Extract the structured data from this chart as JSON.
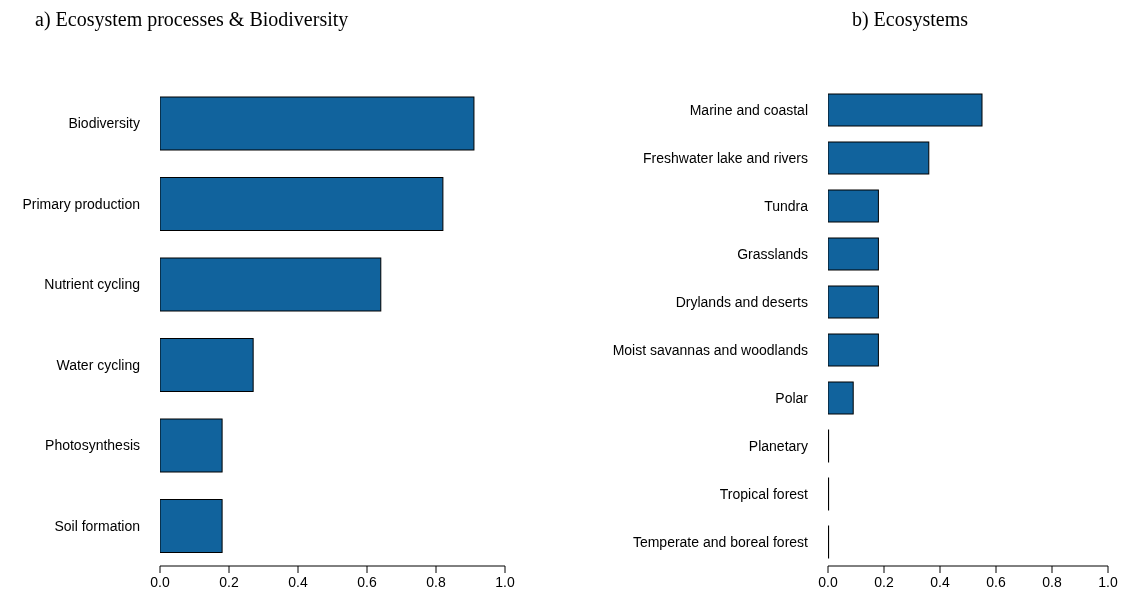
{
  "chart_data": [
    {
      "type": "bar",
      "orientation": "horizontal",
      "title": "a) Ecosystem processes & Biodiversity",
      "categories": [
        "Biodiversity",
        "Primary production",
        "Nutrient cycling",
        "Water cycling",
        "Photosynthesis",
        "Soil formation"
      ],
      "values": [
        0.91,
        0.82,
        0.64,
        0.27,
        0.18,
        0.18
      ],
      "color": "#11639d",
      "xlim": [
        0,
        1
      ],
      "xticks": [
        {
          "value": 0,
          "label": "0.0"
        },
        {
          "value": 0.2,
          "label": "0.2"
        },
        {
          "value": 0.4,
          "label": "0.4"
        },
        {
          "value": 0.6,
          "label": "0.6"
        },
        {
          "value": 0.8,
          "label": "0.8"
        },
        {
          "value": 1,
          "label": "1.0"
        }
      ]
    },
    {
      "type": "bar",
      "orientation": "horizontal",
      "title": "b) Ecosystems",
      "categories": [
        "Marine and coastal",
        "Freshwater lake and rivers",
        "Tundra",
        "Grasslands",
        "Drylands and deserts",
        "Moist savannas and woodlands",
        "Polar",
        "Planetary",
        "Tropical forest",
        "Temperate and boreal forest"
      ],
      "values": [
        0.55,
        0.36,
        0.18,
        0.18,
        0.18,
        0.18,
        0.09,
        0,
        0,
        0
      ],
      "color": "#11639d",
      "xlim": [
        0,
        1
      ],
      "xticks": [
        {
          "value": 0,
          "label": "0.0"
        },
        {
          "value": 0.2,
          "label": "0.2"
        },
        {
          "value": 0.4,
          "label": "0.4"
        },
        {
          "value": 0.6,
          "label": "0.6"
        },
        {
          "value": 0.8,
          "label": "0.8"
        },
        {
          "value": 1,
          "label": "1.0"
        }
      ]
    }
  ]
}
